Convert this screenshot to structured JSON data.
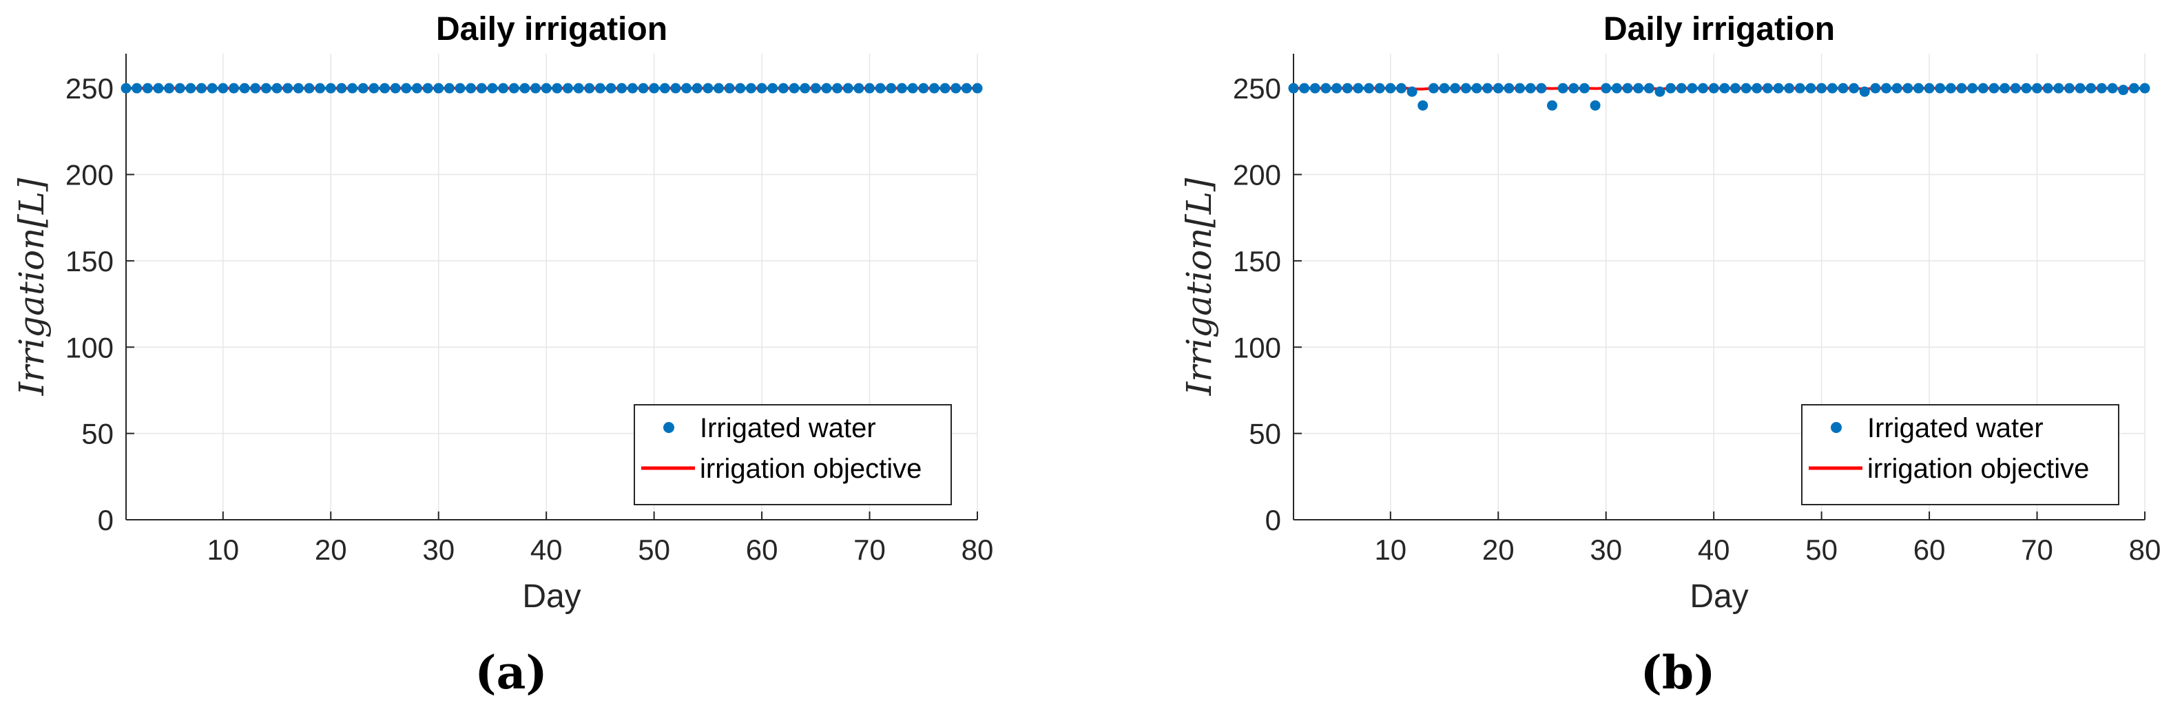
{
  "colors": {
    "marker": "#0072BD",
    "objective_line": "#FF0000",
    "grid": "#E6E6E6",
    "axis": "#262626"
  },
  "chart_data": [
    {
      "type": "scatter",
      "panel_label": "(a)",
      "title": "Daily irrigation",
      "xlabel": "Day",
      "ylabel": "Irrigation[L]",
      "xlim": [
        1,
        80
      ],
      "ylim": [
        0,
        270
      ],
      "xticks": [
        10,
        20,
        30,
        40,
        50,
        60,
        70,
        80
      ],
      "yticks": [
        0,
        50,
        100,
        150,
        200,
        250
      ],
      "grid": true,
      "legend_position": "bottom-right",
      "series": [
        {
          "name": "Irrigated water",
          "kind": "markers",
          "x_start": 1,
          "x_end": 80,
          "default_value": 250,
          "overrides": {}
        },
        {
          "name": "irrigation objective",
          "kind": "line",
          "x": [
            1,
            80
          ],
          "values": [
            250,
            250
          ]
        }
      ]
    },
    {
      "type": "scatter",
      "panel_label": "(b)",
      "title": "Daily irrigation",
      "xlabel": "Day",
      "ylabel": "Irrigation[L]",
      "xlim": [
        1,
        80
      ],
      "ylim": [
        0,
        270
      ],
      "xticks": [
        10,
        20,
        30,
        40,
        50,
        60,
        70,
        80
      ],
      "yticks": [
        0,
        50,
        100,
        150,
        200,
        250
      ],
      "grid": true,
      "legend_position": "bottom-right",
      "series": [
        {
          "name": "Irrigated water",
          "kind": "markers",
          "x_start": 1,
          "x_end": 80,
          "default_value": 250,
          "overrides": {
            "12": 248,
            "13": 240,
            "25": 240,
            "29": 240,
            "35": 248,
            "54": 248,
            "78": 249
          }
        },
        {
          "name": "irrigation objective",
          "kind": "line",
          "x": [
            1,
            11,
            11.5,
            12,
            13,
            14,
            24,
            25,
            26,
            28,
            29,
            30,
            34,
            35,
            36,
            53,
            54,
            55,
            77,
            78,
            79,
            80
          ],
          "values": [
            250,
            250,
            250,
            249.5,
            249.5,
            250,
            250,
            249.8,
            250,
            250,
            249.8,
            250,
            250,
            249.5,
            250,
            250,
            249.5,
            250,
            250,
            249.7,
            250,
            250
          ]
        }
      ]
    }
  ]
}
